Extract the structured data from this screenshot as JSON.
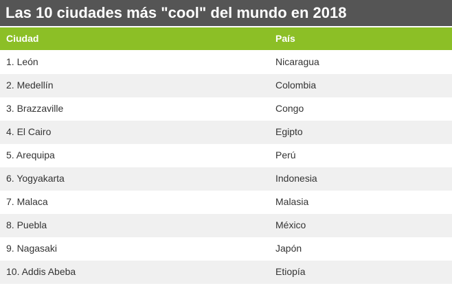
{
  "header": {
    "title": "Las 10 ciudades más \"cool\" del mundo en 2018"
  },
  "table": {
    "columns": [
      "Ciudad",
      "País"
    ],
    "rows": [
      [
        "1. León",
        "Nicaragua"
      ],
      [
        "2. Medellín",
        "Colombia"
      ],
      [
        "3. Brazzaville",
        "Congo"
      ],
      [
        "4. El Cairo",
        "Egipto"
      ],
      [
        "5. Arequipa",
        "Perú"
      ],
      [
        "6. Yogyakarta",
        "Indonesia"
      ],
      [
        "7. Malaca",
        "Malasia"
      ],
      [
        "8. Puebla",
        "México"
      ],
      [
        "9. Nagasaki",
        "Japón"
      ],
      [
        "10. Addis Abeba",
        "Etiopía"
      ]
    ]
  }
}
